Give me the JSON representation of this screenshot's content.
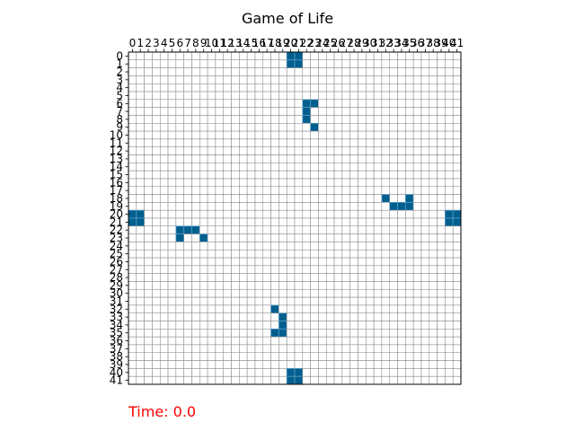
{
  "title": "Game of Life",
  "time_label": "Time: 0.0",
  "grid": {
    "rows": 42,
    "cols": 42,
    "live_cells": [
      [
        0,
        20
      ],
      [
        0,
        21
      ],
      [
        1,
        20
      ],
      [
        1,
        21
      ],
      [
        6,
        22
      ],
      [
        6,
        23
      ],
      [
        7,
        22
      ],
      [
        8,
        22
      ],
      [
        9,
        23
      ],
      [
        18,
        32
      ],
      [
        18,
        35
      ],
      [
        19,
        33
      ],
      [
        19,
        34
      ],
      [
        19,
        35
      ],
      [
        20,
        0
      ],
      [
        20,
        1
      ],
      [
        21,
        0
      ],
      [
        21,
        1
      ],
      [
        20,
        40
      ],
      [
        20,
        41
      ],
      [
        21,
        40
      ],
      [
        21,
        41
      ],
      [
        22,
        6
      ],
      [
        22,
        7
      ],
      [
        22,
        8
      ],
      [
        23,
        6
      ],
      [
        23,
        9
      ],
      [
        32,
        18
      ],
      [
        33,
        19
      ],
      [
        34,
        19
      ],
      [
        35,
        18
      ],
      [
        35,
        19
      ],
      [
        40,
        20
      ],
      [
        40,
        21
      ],
      [
        41,
        20
      ],
      [
        41,
        21
      ]
    ]
  },
  "x_tick_labels": [
    "0",
    "1",
    "2",
    "3",
    "4",
    "5",
    "6",
    "7",
    "8",
    "9",
    "10",
    "11",
    "12",
    "13",
    "14",
    "15",
    "16",
    "17",
    "18",
    "19",
    "20",
    "21",
    "22",
    "23",
    "24",
    "25",
    "26",
    "27",
    "28",
    "29",
    "30",
    "31",
    "32",
    "33",
    "34",
    "35",
    "36",
    "37",
    "38",
    "39",
    "40",
    "41"
  ],
  "y_tick_labels": [
    "0",
    "1",
    "2",
    "3",
    "4",
    "5",
    "6",
    "7",
    "8",
    "9",
    "10",
    "11",
    "12",
    "13",
    "14",
    "15",
    "16",
    "17",
    "18",
    "19",
    "20",
    "21",
    "22",
    "23",
    "24",
    "25",
    "26",
    "27",
    "28",
    "29",
    "30",
    "31",
    "32",
    "33",
    "34",
    "35",
    "36",
    "37",
    "38",
    "39",
    "40",
    "41"
  ],
  "colors": {
    "live": "#005f8f",
    "live_edge": "#5a9ac0",
    "dead": "#ffffff",
    "grid_line": "#808080",
    "time_text": "#ff0000"
  }
}
